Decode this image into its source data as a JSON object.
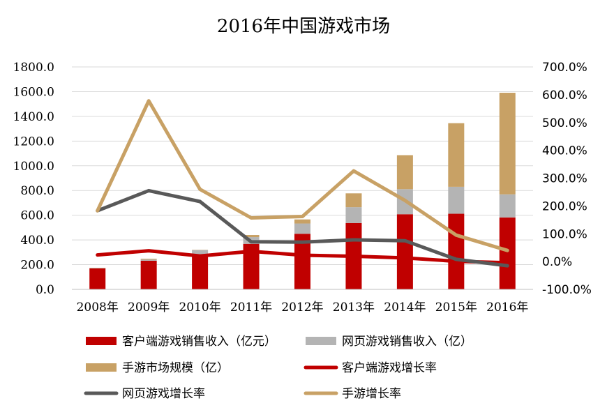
{
  "chart_data": {
    "type": "bar+line",
    "title": "2016年中国游戏市场",
    "categories": [
      "2008年",
      "2009年",
      "2010年",
      "2011年",
      "2012年",
      "2013年",
      "2014年",
      "2015年",
      "2016年"
    ],
    "y_left": {
      "range": [
        0,
        1800
      ],
      "tick_values": [
        0,
        200,
        400,
        600,
        800,
        1000,
        1200,
        1400,
        1600,
        1800
      ],
      "tick_labels": [
        "0.0",
        "200.0",
        "400.0",
        "600.0",
        "800.0",
        "1000.0",
        "1200.0",
        "1400.0",
        "1600.0",
        "1800.0"
      ]
    },
    "y_right": {
      "range": [
        -100,
        700
      ],
      "tick_values": [
        -100,
        0,
        100,
        200,
        300,
        400,
        500,
        600,
        700
      ],
      "tick_labels": [
        "-100.0%",
        "0.0%",
        "100.0%",
        "200.0%",
        "300.0%",
        "400.0%",
        "500.0%",
        "600.0%",
        "700.0%"
      ]
    },
    "grid": true,
    "legend_position": "bottom",
    "bar_series": [
      {
        "name": "客户端游戏销售收入（亿元）",
        "color": "#c00000",
        "values": [
          170,
          232,
          280,
          368,
          450,
          537,
          608,
          612,
          582
        ]
      },
      {
        "name": "网页游戏销售收入（亿）",
        "color": "#b4b4b4",
        "values": [
          3,
          10,
          38,
          55,
          83,
          128,
          203,
          218,
          187
        ]
      },
      {
        "name": "手游市场规模（亿）",
        "color": "#c8a165",
        "values": [
          2,
          6,
          2,
          17,
          33,
          112,
          275,
          515,
          822
        ]
      }
    ],
    "line_series": [
      {
        "name": "客户端游戏增长率",
        "color": "#c00000",
        "values": [
          24,
          39,
          20,
          37,
          23,
          19,
          13,
          1,
          -4
        ]
      },
      {
        "name": "网页游戏增长率",
        "color": "#595959",
        "values": [
          183,
          255,
          216,
          71,
          70,
          78,
          75,
          8,
          -15
        ]
      },
      {
        "name": "手游增长率",
        "color": "#c8a165",
        "values": [
          183,
          578,
          260,
          157,
          162,
          326,
          220,
          95,
          40
        ]
      }
    ]
  }
}
